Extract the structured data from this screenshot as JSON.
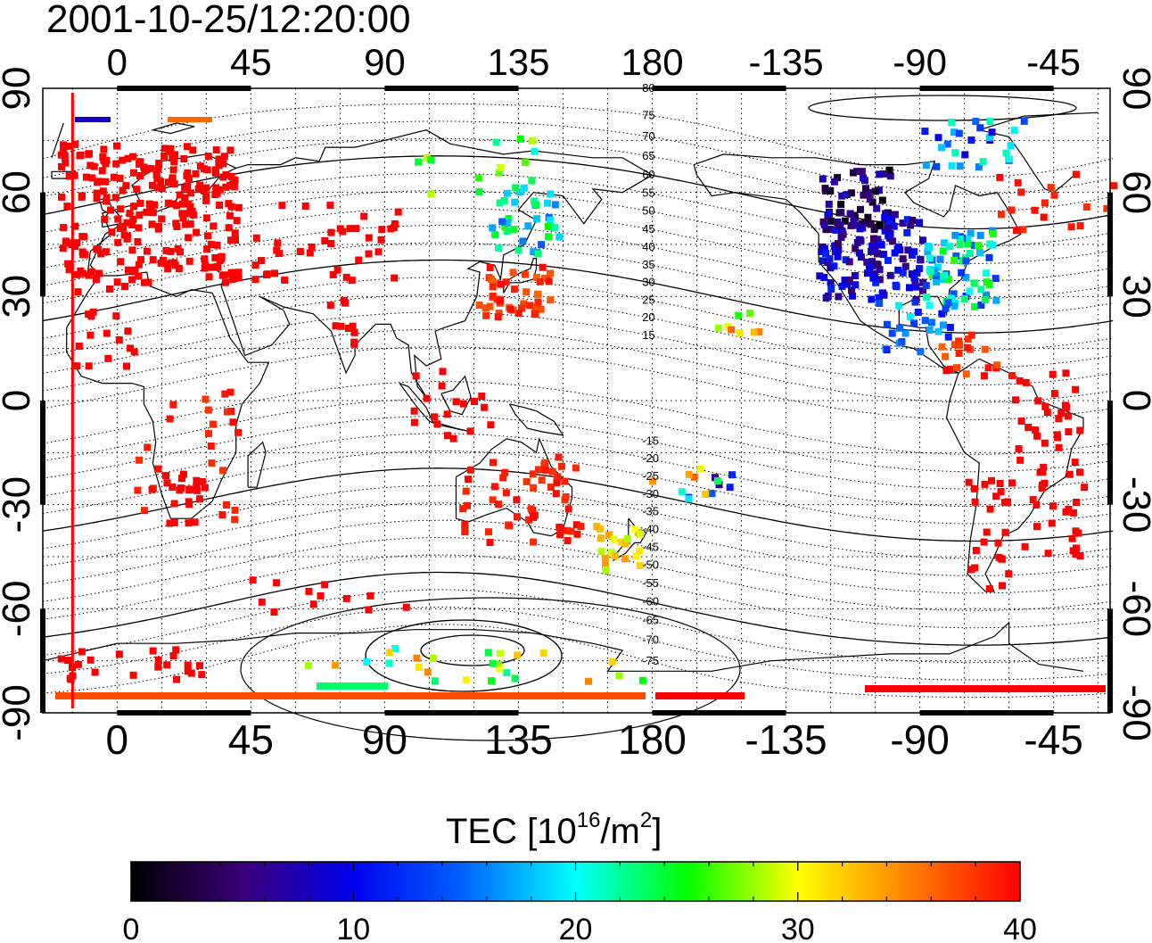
{
  "title": "2001-10-25/12:20:00",
  "map": {
    "longitude_ticks": [
      "0",
      "45",
      "90",
      "135",
      "180",
      "-135",
      "-90",
      "-45"
    ],
    "latitude_ticks": [
      "90",
      "60",
      "30",
      "0",
      "-30",
      "-60",
      "-90"
    ],
    "magnetic_latitude_labels": [
      "80",
      "75",
      "70",
      "65",
      "60",
      "55",
      "50",
      "45",
      "40",
      "35",
      "30",
      "25",
      "20",
      "15",
      "-15",
      "-20",
      "-25",
      "-30",
      "-35",
      "-40",
      "-45",
      "-50",
      "-55",
      "-60",
      "-65",
      "-70",
      "-75"
    ],
    "time_marker_longitude": -15
  },
  "colorbar": {
    "title_prefix": "TEC  [10",
    "title_exp1": "16",
    "title_mid": "/m",
    "title_exp2": "2",
    "title_suffix": "]",
    "min": 0,
    "max": 40,
    "tick_labels": [
      "0",
      "10",
      "20",
      "30",
      "40"
    ],
    "stops": [
      "#000000",
      "#3a0078",
      "#0000f0",
      "#0064ff",
      "#00ffff",
      "#00ff00",
      "#ffff00",
      "#ff8000",
      "#ff0000"
    ]
  }
}
